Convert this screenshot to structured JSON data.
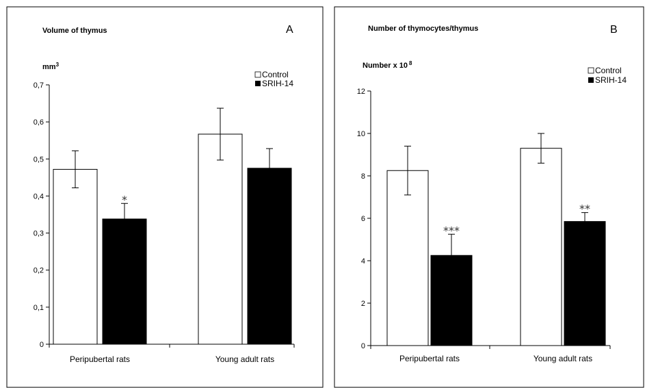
{
  "chart_data": [
    {
      "type": "bar",
      "panel_letter": "A",
      "title": "Volume of thymus",
      "ylabel": "mm",
      "ylabel_sup": "3",
      "ylim": [
        0,
        0.7
      ],
      "yticks": [
        0,
        0.1,
        0.2,
        0.3,
        0.4,
        0.5,
        0.6,
        0.7
      ],
      "ytick_labels": [
        "0",
        "0,1",
        "0,2",
        "0,3",
        "0,4",
        "0,5",
        "0,6",
        "0,7"
      ],
      "categories": [
        "Peripubertal rats",
        "Young adult rats"
      ],
      "series": [
        {
          "name": "Control",
          "values": [
            0.472,
            0.567
          ],
          "errors": [
            0.05,
            0.07
          ],
          "color": "#ffffff"
        },
        {
          "name": "SRIH-14",
          "values": [
            0.338,
            0.475
          ],
          "errors": [
            0.042,
            0.053
          ],
          "color": "#000000"
        }
      ],
      "annotations": [
        {
          "series": 1,
          "category": 0,
          "text": "*"
        }
      ],
      "legend": "top-right",
      "grid": false
    },
    {
      "type": "bar",
      "panel_letter": "B",
      "title": "Number of thymocytes/thymus",
      "ylabel": "Number x 10",
      "ylabel_sup": "8",
      "ylim": [
        0,
        12
      ],
      "yticks": [
        0,
        2,
        4,
        6,
        8,
        10,
        12
      ],
      "ytick_labels": [
        "0",
        "2",
        "4",
        "6",
        "8",
        "10",
        "12"
      ],
      "categories": [
        "Peripubertal rats",
        "Young adult rats"
      ],
      "series": [
        {
          "name": "Control",
          "values": [
            8.25,
            9.3
          ],
          "errors": [
            1.15,
            0.7
          ],
          "color": "#ffffff"
        },
        {
          "name": "SRIH-14",
          "values": [
            4.25,
            5.85
          ],
          "errors": [
            1.0,
            0.42
          ],
          "color": "#000000"
        }
      ],
      "annotations": [
        {
          "series": 1,
          "category": 0,
          "text": "***"
        },
        {
          "series": 1,
          "category": 1,
          "text": "**"
        }
      ],
      "legend": "top-right",
      "grid": false
    }
  ]
}
